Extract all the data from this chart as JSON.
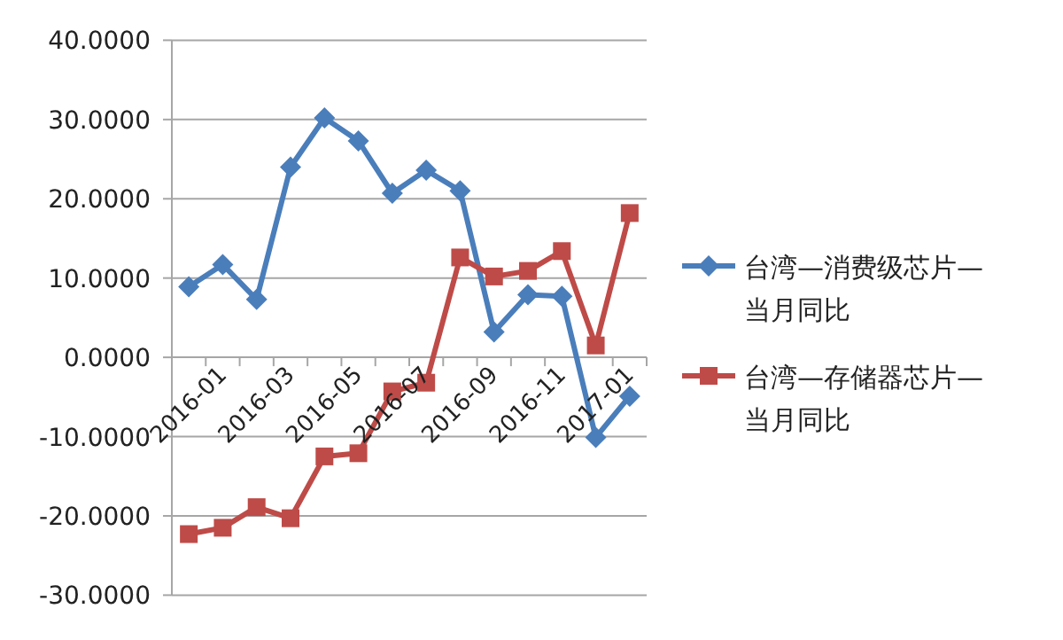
{
  "chart_data": {
    "type": "line",
    "categories": [
      "2016-01",
      null,
      "2016-03",
      null,
      "2016-05",
      null,
      "2016-07",
      null,
      "2016-09",
      null,
      "2016-11",
      null,
      "2017-01",
      null
    ],
    "series": [
      {
        "name": "台湾—消费级芯片—当月同比",
        "color": "#4a7ebb",
        "marker": "diamond",
        "values": [
          8.9,
          11.7,
          7.3,
          24.0,
          30.2,
          27.3,
          20.7,
          23.6,
          21.0,
          3.2,
          7.9,
          7.7,
          -10.1,
          -4.9
        ]
      },
      {
        "name": "台湾—存储器芯片—当月同比",
        "color": "#be4b48",
        "marker": "square",
        "values": [
          -22.3,
          -21.5,
          -18.9,
          -20.3,
          -12.5,
          -12.1,
          -4.3,
          -3.2,
          12.6,
          10.2,
          10.9,
          13.4,
          1.5,
          18.2
        ]
      }
    ],
    "ylim": [
      -30,
      40
    ],
    "yticks": [
      {
        "value": -30,
        "label": "-30.0000"
      },
      {
        "value": -20,
        "label": "-20.0000"
      },
      {
        "value": -10,
        "label": "-10.0000"
      },
      {
        "value": 0,
        "label": "0.0000"
      },
      {
        "value": 10,
        "label": "10.0000"
      },
      {
        "value": 20,
        "label": "20.0000"
      },
      {
        "value": 30,
        "label": "30.0000"
      },
      {
        "value": 40,
        "label": "40.0000"
      }
    ],
    "grid": "y",
    "legend": "right",
    "line_style": "solid"
  }
}
